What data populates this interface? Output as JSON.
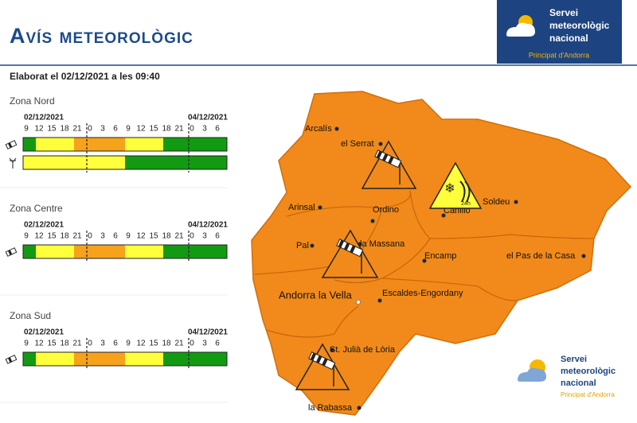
{
  "header": {
    "title": "Avís meteorològic",
    "issued": "Elaborat el 02/12/2021 a les 09:40"
  },
  "logo": {
    "line1": "Servei",
    "line2": "meteorològic",
    "line3": "nacional",
    "region": "Principat d'Andorra"
  },
  "zones": [
    {
      "name": "Zona Nord",
      "start_date": "02/12/2021",
      "end_date": "04/12/2021",
      "hours": [
        "9",
        "12",
        "15",
        "18",
        "21",
        "0",
        "3",
        "6",
        "9",
        "12",
        "15",
        "18",
        "21",
        "0",
        "3",
        "6"
      ]
    },
    {
      "name": "Zona Centre",
      "start_date": "02/12/2021",
      "end_date": "04/12/2021",
      "hours": [
        "9",
        "12",
        "15",
        "18",
        "21",
        "0",
        "3",
        "6",
        "9",
        "12",
        "15",
        "18",
        "21",
        "0",
        "3",
        "6"
      ]
    },
    {
      "name": "Zona Sud",
      "start_date": "02/12/2021",
      "end_date": "04/12/2021",
      "hours": [
        "9",
        "12",
        "15",
        "18",
        "21",
        "0",
        "3",
        "6",
        "9",
        "12",
        "15",
        "18",
        "21",
        "0",
        "3",
        "6"
      ]
    }
  ],
  "map": {
    "places": [
      "Arcalís",
      "el Serrat",
      "Arinsal",
      "Ordino",
      "Canillo",
      "Soldeu",
      "Pal",
      "la Massana",
      "Encamp",
      "el Pas de la Casa",
      "Andorra la Vella",
      "Escaldes-Engordany",
      "St. Julià de Lòria",
      "la Rabassa"
    ],
    "snow_icon_label": "24h"
  }
}
